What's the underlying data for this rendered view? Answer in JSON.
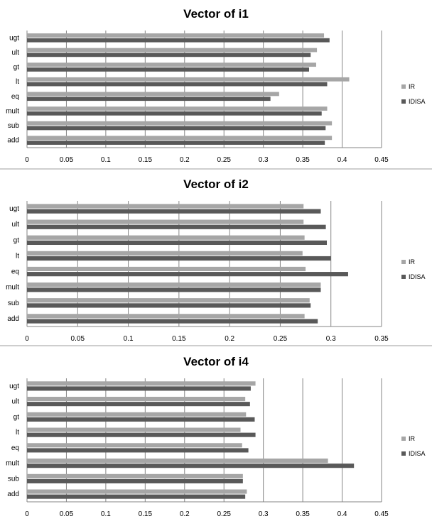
{
  "colors": {
    "IR": "#a6a6a6",
    "IDISA": "#595959",
    "gridline": "#868686",
    "separator": "#9e9e9e"
  },
  "chart_data": [
    {
      "type": "bar",
      "orientation": "horizontal",
      "title": "Vector of i1",
      "categories": [
        "ugt",
        "ult",
        "gt",
        "lt",
        "eq",
        "mult",
        "sub",
        "add"
      ],
      "xlim": [
        0,
        0.45
      ],
      "xticks": [
        "0",
        "0.05",
        "0.1",
        "0.15",
        "0.2",
        "0.25",
        "0.3",
        "0.35",
        "0.4",
        "0.45"
      ],
      "grid": "vertical",
      "legend": "right",
      "series": [
        {
          "name": "IR",
          "values": [
            0.377,
            0.368,
            0.367,
            0.409,
            0.32,
            0.381,
            0.387,
            0.387
          ]
        },
        {
          "name": "IDISA",
          "values": [
            0.384,
            0.36,
            0.358,
            0.381,
            0.309,
            0.374,
            0.379,
            0.378
          ]
        }
      ]
    },
    {
      "type": "bar",
      "orientation": "horizontal",
      "title": "Vector of i2",
      "categories": [
        "ugt",
        "ult",
        "gt",
        "lt",
        "eq",
        "mult",
        "sub",
        "add"
      ],
      "xlim": [
        0,
        0.35
      ],
      "xticks": [
        "0",
        "0.05",
        "0.1",
        "0.15",
        "0.2",
        "0.25",
        "0.3",
        "0.35"
      ],
      "grid": "vertical",
      "legend": "right",
      "series": [
        {
          "name": "IR",
          "values": [
            0.273,
            0.273,
            0.274,
            0.272,
            0.275,
            0.29,
            0.279,
            0.274
          ]
        },
        {
          "name": "IDISA",
          "values": [
            0.29,
            0.295,
            0.296,
            0.3,
            0.317,
            0.29,
            0.28,
            0.287
          ]
        }
      ]
    },
    {
      "type": "bar",
      "orientation": "horizontal",
      "title": "Vector of i4",
      "categories": [
        "ugt",
        "ult",
        "gt",
        "lt",
        "eq",
        "mult",
        "sub",
        "add"
      ],
      "xlim": [
        0,
        0.45
      ],
      "xticks": [
        "0",
        "0.05",
        "0.1",
        "0.15",
        "0.2",
        "0.25",
        "0.3",
        "0.35",
        "0.4",
        "0.45"
      ],
      "grid": "vertical",
      "legend": "right",
      "series": [
        {
          "name": "IR",
          "values": [
            0.29,
            0.277,
            0.278,
            0.271,
            0.273,
            0.382,
            0.274,
            0.279
          ]
        },
        {
          "name": "IDISA",
          "values": [
            0.284,
            0.283,
            0.289,
            0.29,
            0.281,
            0.415,
            0.274,
            0.277
          ]
        }
      ]
    }
  ]
}
